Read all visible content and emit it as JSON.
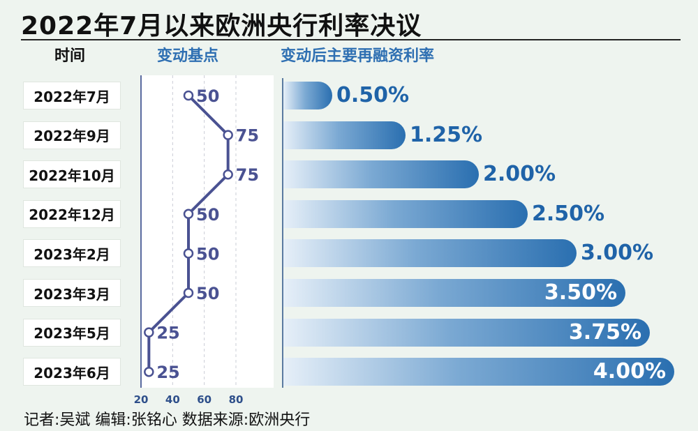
{
  "title": "2022年7月以来欧洲央行利率决议",
  "headers": {
    "time": "时间",
    "bp": "变动基点",
    "rate": "变动后主要再融资利率"
  },
  "footer": "记者:吴斌   编辑:张铭心   数据来源:欧洲央行",
  "colors": {
    "line": "#4a5292",
    "bar_dark": "#2a6fb0",
    "bar_light": "#e6eff8",
    "label_dark": "#1f63a8",
    "label_light": "#ffffff"
  },
  "chart_data": [
    {
      "type": "line",
      "title": "变动基点",
      "categories": [
        "2022年7月",
        "2022年9月",
        "2022年10月",
        "2022年12月",
        "2023年2月",
        "2023年3月",
        "2023年5月",
        "2023年6月"
      ],
      "values": [
        50,
        75,
        75,
        50,
        50,
        50,
        25,
        25
      ],
      "value_labels": [
        "50",
        "75",
        "75",
        "50",
        "50",
        "50",
        "25",
        "25"
      ],
      "xlim": [
        20,
        80
      ],
      "xticks": [
        "20",
        "40",
        "60",
        "80"
      ],
      "orientation": "horizontal-values",
      "grid": true
    },
    {
      "type": "bar",
      "title": "变动后主要再融资利率",
      "categories": [
        "2022年7月",
        "2022年9月",
        "2022年10月",
        "2022年12月",
        "2023年2月",
        "2023年3月",
        "2023年5月",
        "2023年6月"
      ],
      "values": [
        0.5,
        1.25,
        2.0,
        2.5,
        3.0,
        3.5,
        3.75,
        4.0
      ],
      "value_labels": [
        "0.50%",
        "1.25%",
        "2.00%",
        "2.50%",
        "3.00%",
        "3.50%",
        "3.75%",
        "4.00%"
      ],
      "unit": "%",
      "orientation": "horizontal"
    }
  ]
}
